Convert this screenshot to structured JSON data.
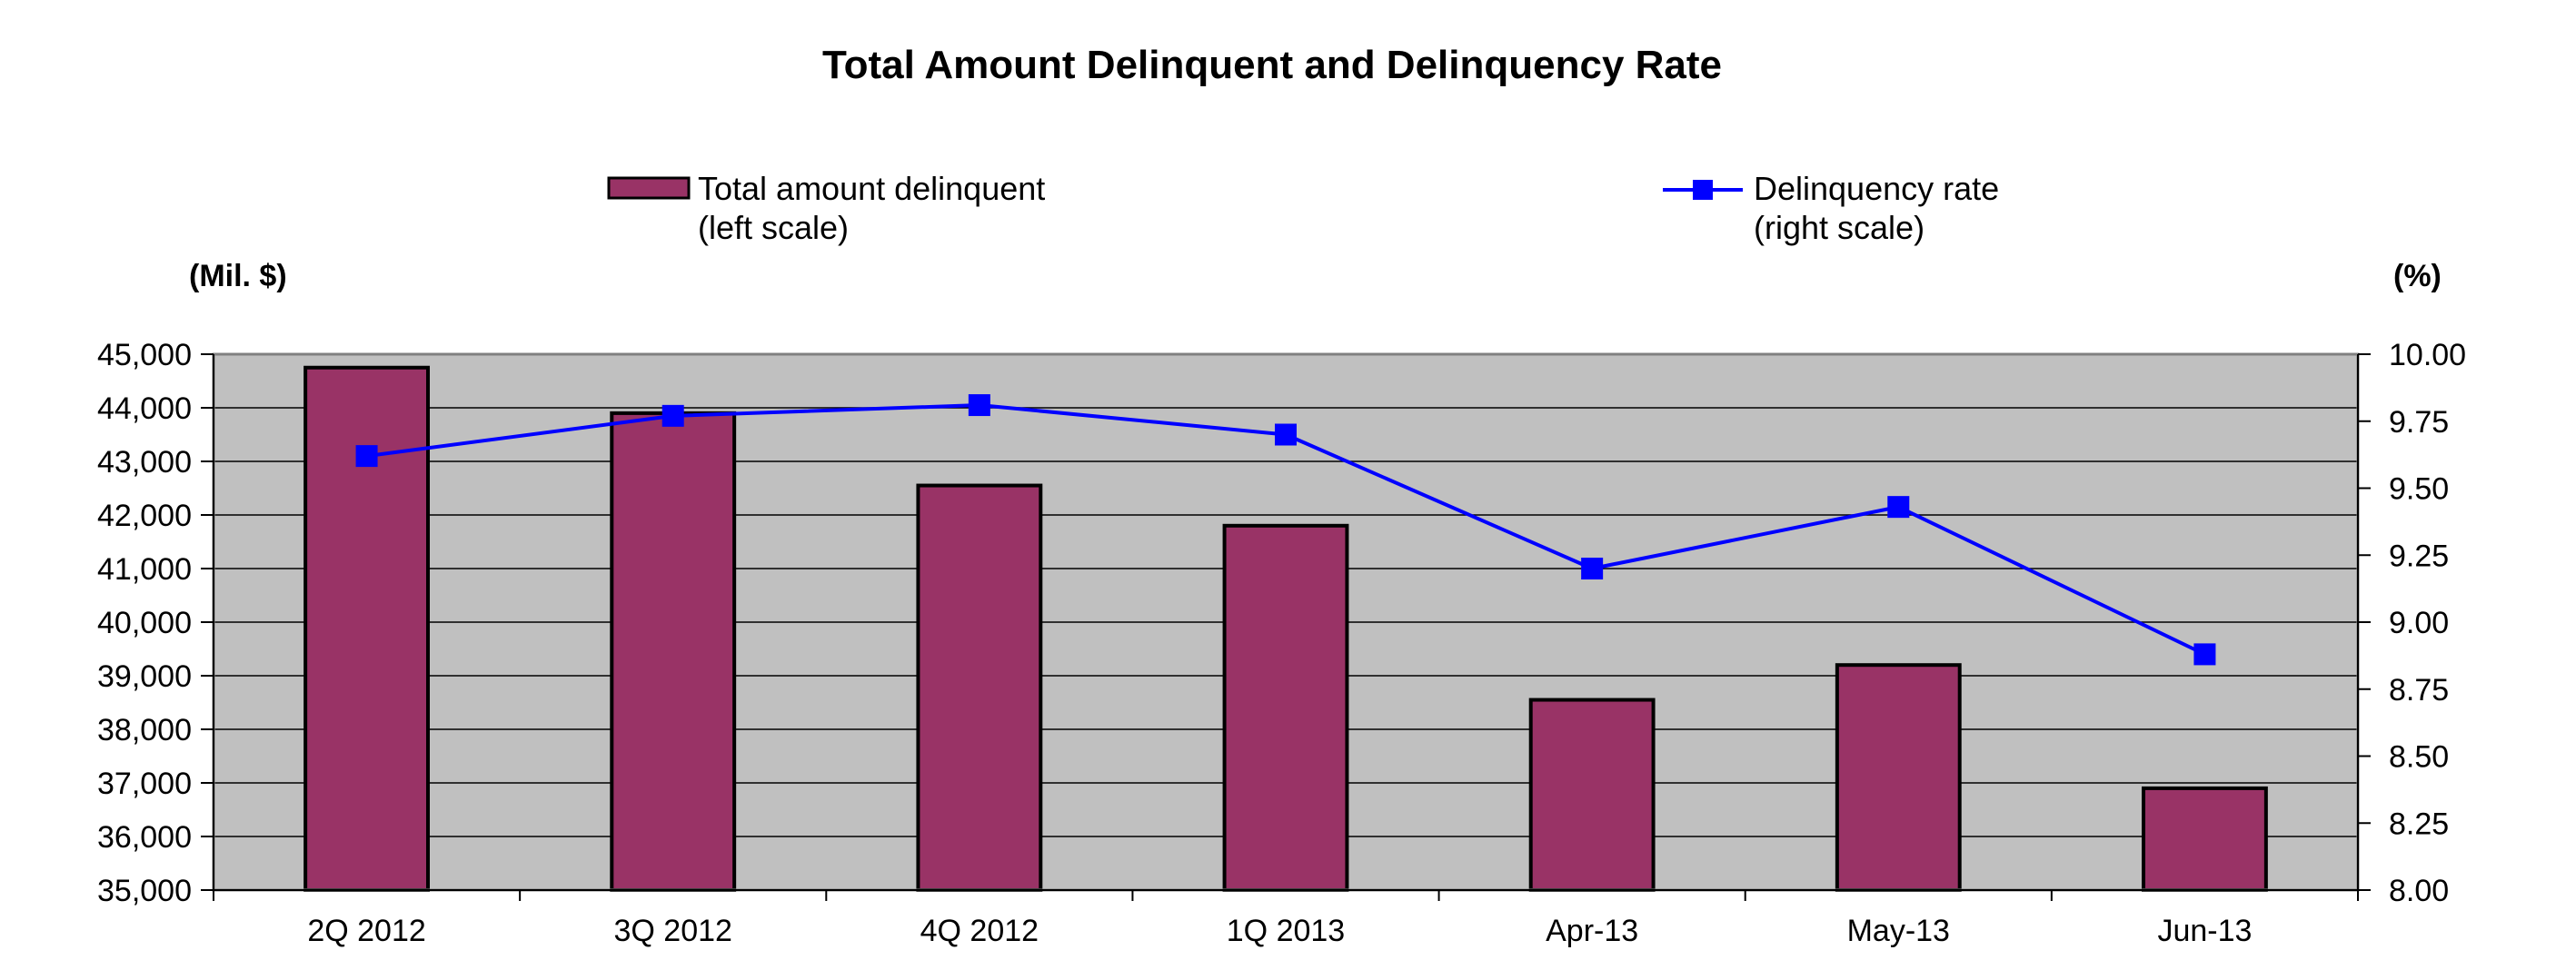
{
  "chart_data": {
    "type": "bar",
    "title": "Total Amount Delinquent and Delinquency Rate",
    "left_axis_unit": "(Mil. $)",
    "right_axis_unit": "(%)",
    "categories": [
      "2Q 2012",
      "3Q 2012",
      "4Q 2012",
      "1Q 2013",
      "Apr-13",
      "May-13",
      "Jun-13"
    ],
    "series": [
      {
        "name": "Total amount delinquent",
        "legend_lines": [
          "Total amount delinquent",
          "(left scale)"
        ],
        "type": "bar",
        "axis": "left",
        "color": "#993366",
        "values": [
          44750,
          43900,
          42550,
          41800,
          38550,
          39200,
          36900
        ]
      },
      {
        "name": "Delinquency rate",
        "legend_lines": [
          "Delinquency rate",
          "(right scale)"
        ],
        "type": "line",
        "axis": "right",
        "color": "#0000FF",
        "values": [
          9.62,
          9.77,
          9.81,
          9.7,
          9.2,
          9.43,
          8.88
        ]
      }
    ],
    "y_left": {
      "min": 35000,
      "max": 45000,
      "ticks": [
        "35,000",
        "36,000",
        "37,000",
        "38,000",
        "39,000",
        "40,000",
        "41,000",
        "42,000",
        "43,000",
        "44,000",
        "45,000"
      ]
    },
    "y_right": {
      "min": 8.0,
      "max": 10.0,
      "ticks": [
        "8.00",
        "8.25",
        "8.50",
        "8.75",
        "9.00",
        "9.25",
        "9.50",
        "9.75",
        "10.00"
      ]
    },
    "grid": true,
    "legend_position": "top",
    "plot_background": "#C0C0C0"
  }
}
